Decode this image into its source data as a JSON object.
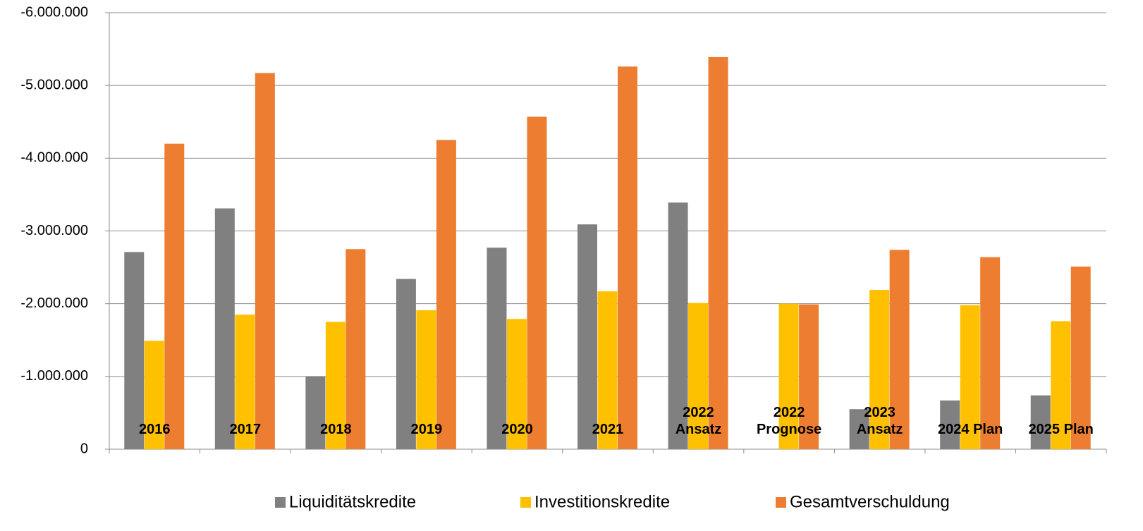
{
  "chart_data": {
    "type": "bar",
    "categories": [
      "2016",
      "2017",
      "2018",
      "2019",
      "2020",
      "2021",
      "2022\nAnsatz",
      "2022\nPrognose",
      "2023\nAnsatz",
      "2024 Plan",
      "2025 Plan"
    ],
    "series": [
      {
        "name": "Liquiditätskredite",
        "color": "#808080",
        "values": [
          -2710000,
          -3310000,
          -1000000,
          -2340000,
          -2770000,
          -3090000,
          -3390000,
          null,
          -550000,
          -670000,
          -740000
        ]
      },
      {
        "name": "Investitionskredite",
        "color": "#ffc000",
        "values": [
          -1490000,
          -1850000,
          -1750000,
          -1910000,
          -1790000,
          -2170000,
          -2010000,
          -2000000,
          -2190000,
          -1980000,
          -1760000
        ]
      },
      {
        "name": "Gesamtverschuldung",
        "color": "#ed7d31",
        "values": [
          -4200000,
          -5170000,
          -2750000,
          -4250000,
          -4570000,
          -5260000,
          -5390000,
          -1990000,
          -2740000,
          -2640000,
          -2510000
        ]
      }
    ],
    "ylim": [
      0,
      -6000000
    ],
    "yticks": [
      0,
      {
        "value": -1000000,
        "label": "-1.000.000"
      },
      {
        "value": -2000000,
        "label": "-2.000.000"
      },
      {
        "value": -3000000,
        "label": "-3.000.000"
      },
      {
        "value": -4000000,
        "label": "-4.000.000"
      },
      {
        "value": -5000000,
        "label": "-5.000.000"
      },
      {
        "value": -6000000,
        "label": "-6.000.000"
      }
    ],
    "grid": true,
    "legend": "bottom"
  }
}
